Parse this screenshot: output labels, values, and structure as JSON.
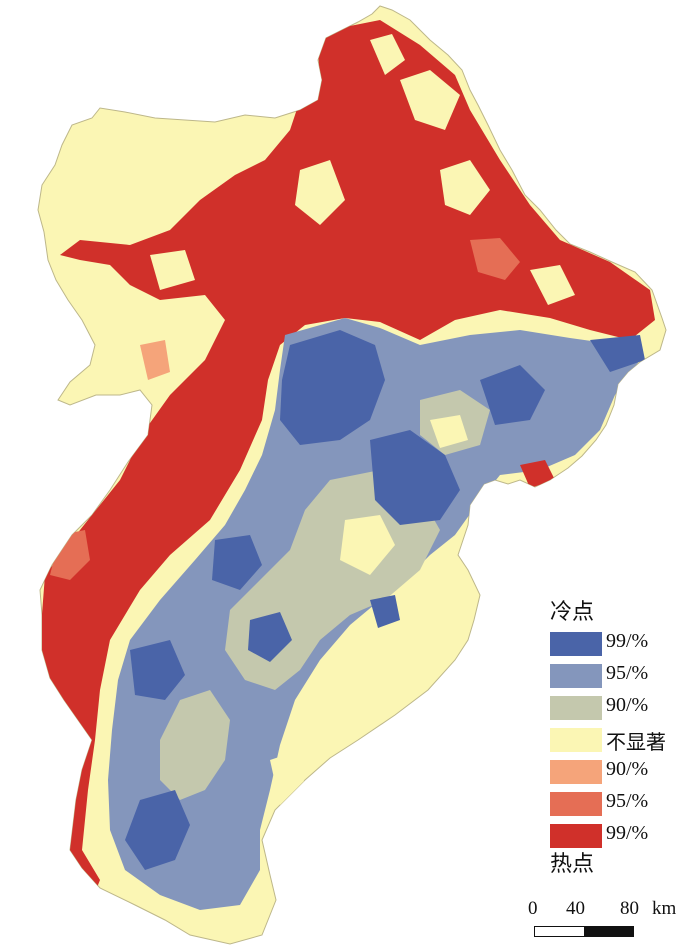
{
  "legend": {
    "cold_title": "冷点",
    "hot_title": "热点",
    "items": [
      {
        "label": "99/%",
        "color": "#4a64a8"
      },
      {
        "label": "95/%",
        "color": "#8496bc"
      },
      {
        "label": "90/%",
        "color": "#c4c8ad"
      },
      {
        "label": "不显著",
        "color": "#fbf6b4"
      },
      {
        "label": "90/%",
        "color": "#f5a47a"
      },
      {
        "label": "95/%",
        "color": "#e56e55"
      },
      {
        "label": "99/%",
        "color": "#d0302a"
      }
    ]
  },
  "scale_bar": {
    "ticks": [
      "0",
      "40",
      "80"
    ],
    "unit": "km"
  }
}
